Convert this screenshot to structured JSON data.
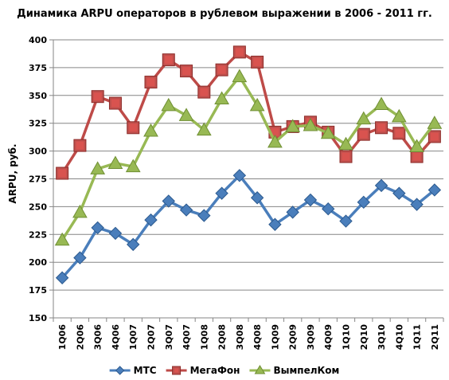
{
  "chart_data": {
    "type": "line",
    "title": "Динамика ARPU операторов в рублевом выражении в 2006 - 2011 гг.",
    "ylabel": "ARPU, руб.",
    "xlabel": "",
    "ylim": [
      150,
      400
    ],
    "yticks": [
      150,
      175,
      200,
      225,
      250,
      275,
      300,
      325,
      350,
      375,
      400
    ],
    "grid": true,
    "legend_position": "bottom",
    "categories": [
      "1Q06",
      "2Q06",
      "3Q06",
      "4Q06",
      "1Q07",
      "2Q07",
      "3Q07",
      "4Q07",
      "1Q08",
      "2Q08",
      "3Q08",
      "4Q08",
      "1Q09",
      "2Q09",
      "3Q09",
      "4Q09",
      "1Q10",
      "2Q10",
      "3Q10",
      "4Q10",
      "1Q11",
      "2Q11"
    ],
    "series": [
      {
        "name": "МТС",
        "color": "#4a7ebb",
        "marker": "diamond",
        "values": [
          186,
          204,
          231,
          226,
          216,
          238,
          255,
          247,
          242,
          262,
          278,
          258,
          234,
          245,
          256,
          248,
          237,
          254,
          269,
          262,
          252,
          265
        ]
      },
      {
        "name": "МегаФон",
        "color": "#be4b48",
        "marker": "square",
        "values": [
          280,
          305,
          349,
          343,
          321,
          362,
          382,
          372,
          353,
          373,
          389,
          380,
          317,
          322,
          326,
          317,
          295,
          315,
          321,
          316,
          295,
          313
        ]
      },
      {
        "name": "ВымпелКом",
        "color": "#98b954",
        "marker": "triangle",
        "values": [
          220,
          245,
          284,
          289,
          286,
          318,
          341,
          332,
          319,
          347,
          367,
          341,
          308,
          322,
          323,
          316,
          306,
          329,
          342,
          331,
          304,
          325
        ]
      }
    ]
  }
}
